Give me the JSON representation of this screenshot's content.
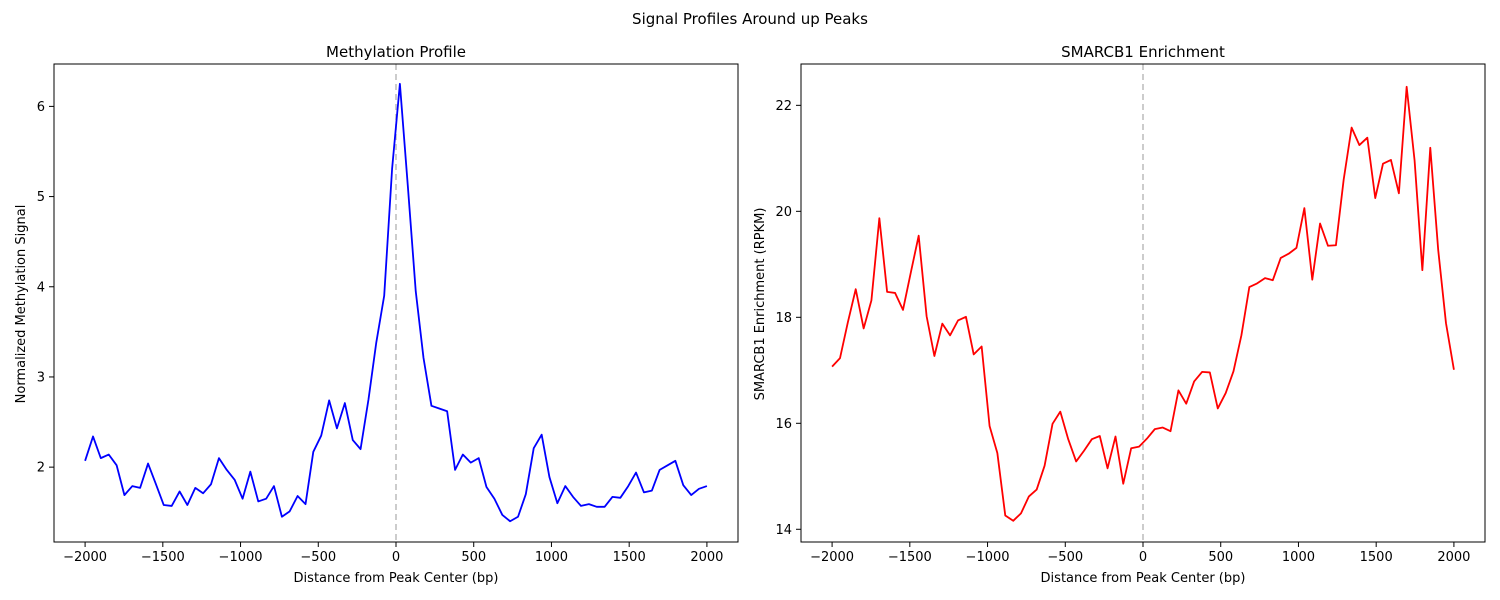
{
  "suptitle": "Signal Profiles Around up Peaks",
  "chart_data": [
    {
      "type": "line",
      "title": "Methylation Profile",
      "xlabel": "Distance from Peak Center (bp)",
      "ylabel": "Normalized Methylation Signal",
      "xlim": [
        -2200,
        2200
      ],
      "ylim": [
        1.17,
        6.47
      ],
      "xticks": [
        -2000,
        -1500,
        -1000,
        -500,
        0,
        500,
        1000,
        1500,
        2000
      ],
      "xtick_labels": [
        "−2000",
        "−1500",
        "−1000",
        "−500",
        "0",
        "500",
        "1000",
        "1500",
        "2000"
      ],
      "yticks": [
        2,
        3,
        4,
        5,
        6
      ],
      "ytick_labels": [
        "2",
        "3",
        "4",
        "5",
        "6"
      ],
      "reference_line_x": 0,
      "reference_line_color": "#bbbbbb",
      "series": [
        {
          "color": "#0000ff",
          "x": [
            -2000,
            -1949,
            -1899,
            -1848,
            -1797,
            -1747,
            -1696,
            -1646,
            -1595,
            -1544,
            -1494,
            -1443,
            -1392,
            -1342,
            -1291,
            -1241,
            -1190,
            -1139,
            -1089,
            -1038,
            -987,
            -937,
            -886,
            -835,
            -785,
            -734,
            -684,
            -633,
            -582,
            -532,
            -481,
            -430,
            -380,
            -329,
            -278,
            -228,
            -177,
            -127,
            -76,
            -25,
            25,
            76,
            127,
            177,
            228,
            278,
            329,
            380,
            430,
            481,
            532,
            582,
            633,
            684,
            734,
            785,
            835,
            886,
            937,
            987,
            1038,
            1089,
            1139,
            1190,
            1241,
            1291,
            1342,
            1392,
            1443,
            1494,
            1544,
            1595,
            1646,
            1696,
            1747,
            1797,
            1848,
            1899,
            1949,
            2000
          ],
          "values": [
            2.07,
            2.34,
            2.1,
            2.14,
            2.02,
            1.69,
            1.79,
            1.77,
            2.04,
            1.81,
            1.58,
            1.57,
            1.73,
            1.58,
            1.77,
            1.71,
            1.81,
            2.1,
            1.97,
            1.86,
            1.65,
            1.95,
            1.62,
            1.65,
            1.79,
            1.45,
            1.51,
            1.68,
            1.59,
            2.17,
            2.35,
            2.74,
            2.43,
            2.71,
            2.3,
            2.2,
            2.75,
            3.38,
            3.9,
            5.31,
            6.25,
            5.12,
            3.95,
            3.21,
            2.68,
            2.65,
            2.62,
            1.97,
            2.14,
            2.05,
            2.1,
            1.78,
            1.65,
            1.47,
            1.4,
            1.45,
            1.7,
            2.21,
            2.36,
            1.89,
            1.6,
            1.79,
            1.67,
            1.57,
            1.59,
            1.56,
            1.56,
            1.67,
            1.66,
            1.79,
            1.94,
            1.72,
            1.74,
            1.97,
            2.02,
            2.07,
            1.8,
            1.69,
            1.76,
            1.79
          ]
        }
      ]
    },
    {
      "type": "line",
      "title": "SMARCB1 Enrichment",
      "xlabel": "Distance from Peak Center (bp)",
      "ylabel": "SMARCB1 Enrichment (RPKM)",
      "xlim": [
        -2200,
        2200
      ],
      "ylim": [
        13.76,
        22.78
      ],
      "xticks": [
        -2000,
        -1500,
        -1000,
        -500,
        0,
        500,
        1000,
        1500,
        2000
      ],
      "xtick_labels": [
        "−2000",
        "−1500",
        "−1000",
        "−500",
        "0",
        "500",
        "1000",
        "1500",
        "2000"
      ],
      "yticks": [
        14,
        16,
        18,
        20,
        22
      ],
      "ytick_labels": [
        "14",
        "16",
        "18",
        "20",
        "22"
      ],
      "reference_line_x": 0,
      "reference_line_color": "#bbbbbb",
      "series": [
        {
          "color": "#ff0000",
          "x": [
            -2000,
            -1949,
            -1899,
            -1848,
            -1797,
            -1747,
            -1696,
            -1646,
            -1595,
            -1544,
            -1494,
            -1443,
            -1392,
            -1342,
            -1291,
            -1241,
            -1190,
            -1139,
            -1089,
            -1038,
            -987,
            -937,
            -886,
            -835,
            -785,
            -734,
            -684,
            -633,
            -582,
            -532,
            -481,
            -430,
            -380,
            -329,
            -278,
            -228,
            -177,
            -127,
            -76,
            -25,
            25,
            76,
            127,
            177,
            228,
            278,
            329,
            380,
            430,
            481,
            532,
            582,
            633,
            684,
            734,
            785,
            835,
            886,
            937,
            987,
            1038,
            1089,
            1139,
            1190,
            1241,
            1291,
            1342,
            1392,
            1443,
            1494,
            1544,
            1595,
            1646,
            1696,
            1747,
            1797,
            1848,
            1899,
            1949,
            2000
          ],
          "values": [
            17.07,
            17.23,
            17.9,
            18.53,
            17.79,
            18.32,
            19.87,
            18.48,
            18.46,
            18.14,
            18.84,
            19.54,
            18.02,
            17.27,
            17.88,
            17.66,
            17.94,
            18.01,
            17.3,
            17.45,
            15.95,
            15.44,
            14.26,
            14.16,
            14.3,
            14.62,
            14.75,
            15.2,
            15.99,
            16.22,
            15.7,
            15.28,
            15.48,
            15.7,
            15.76,
            15.15,
            15.75,
            14.86,
            15.53,
            15.56,
            15.71,
            15.89,
            15.92,
            15.85,
            16.62,
            16.37,
            16.79,
            16.97,
            16.96,
            16.28,
            16.57,
            16.98,
            17.66,
            18.57,
            18.64,
            18.74,
            18.7,
            19.12,
            19.2,
            19.31,
            20.06,
            18.71,
            19.77,
            19.35,
            19.36,
            20.6,
            21.58,
            21.25,
            21.39,
            20.25,
            20.9,
            20.97,
            20.34,
            22.35,
            20.96,
            18.89,
            21.2,
            19.27,
            17.89,
            17.01
          ]
        }
      ]
    }
  ]
}
